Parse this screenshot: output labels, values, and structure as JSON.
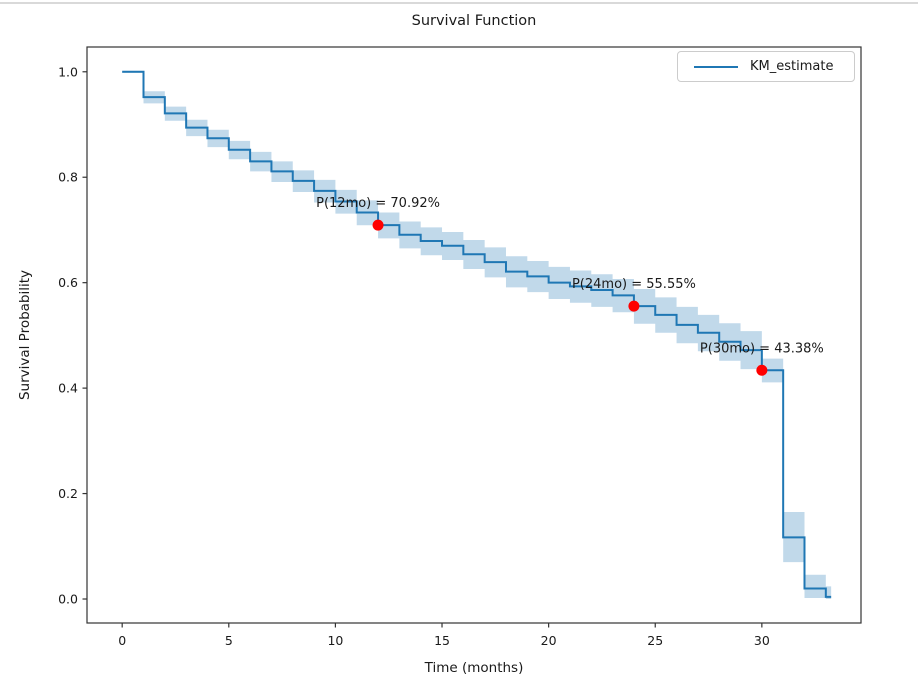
{
  "chart_data": {
    "type": "line",
    "subtype": "kaplan-meier-step-with-ci",
    "title": "Survival Function",
    "xlabel": "Time (months)",
    "ylabel": "Survival Probability",
    "xlim": [
      -1.65,
      34.65
    ],
    "ylim": [
      -0.0455,
      1.047
    ],
    "x_ticks": [
      0,
      5,
      10,
      15,
      20,
      25,
      30
    ],
    "y_ticks": [
      0.0,
      0.2,
      0.4,
      0.6,
      0.8,
      1.0
    ],
    "y_tick_labels": [
      "0.0",
      "0.2",
      "0.4",
      "0.6",
      "0.8",
      "1.0"
    ],
    "grid": false,
    "legend": {
      "label": "KM_estimate",
      "position": "upper right"
    },
    "colors": {
      "line": "#1f77b4",
      "ci_fill": "#1f77b4",
      "ci_opacity": 0.28,
      "marker": "#ff0000",
      "spine": "#333333",
      "text": "#1a1a1a"
    },
    "series": [
      {
        "name": "KM_estimate",
        "step_mode": "post",
        "x_end": 33.25,
        "points_format": [
          "time_months",
          "survival",
          "ci_lower",
          "ci_upper"
        ],
        "points": [
          [
            0,
            1.0,
            0.998,
            1.0
          ],
          [
            1,
            0.952,
            0.94,
            0.963
          ],
          [
            2,
            0.921,
            0.907,
            0.934
          ],
          [
            3,
            0.894,
            0.878,
            0.909
          ],
          [
            4,
            0.874,
            0.857,
            0.89
          ],
          [
            5,
            0.852,
            0.834,
            0.869
          ],
          [
            6,
            0.83,
            0.811,
            0.848
          ],
          [
            7,
            0.811,
            0.791,
            0.83
          ],
          [
            8,
            0.793,
            0.772,
            0.813
          ],
          [
            9,
            0.774,
            0.752,
            0.795
          ],
          [
            10,
            0.754,
            0.731,
            0.776
          ],
          [
            11,
            0.733,
            0.709,
            0.756
          ],
          [
            12,
            0.7092,
            0.684,
            0.733
          ],
          [
            13,
            0.691,
            0.665,
            0.716
          ],
          [
            14,
            0.679,
            0.652,
            0.705
          ],
          [
            15,
            0.67,
            0.643,
            0.696
          ],
          [
            16,
            0.654,
            0.626,
            0.681
          ],
          [
            17,
            0.639,
            0.61,
            0.667
          ],
          [
            18,
            0.621,
            0.591,
            0.65
          ],
          [
            19,
            0.612,
            0.582,
            0.641
          ],
          [
            20,
            0.6,
            0.569,
            0.63
          ],
          [
            21,
            0.593,
            0.562,
            0.623
          ],
          [
            22,
            0.586,
            0.554,
            0.616
          ],
          [
            23,
            0.576,
            0.544,
            0.607
          ],
          [
            24,
            0.5555,
            0.522,
            0.588
          ],
          [
            25,
            0.539,
            0.505,
            0.572
          ],
          [
            26,
            0.52,
            0.485,
            0.554
          ],
          [
            27,
            0.505,
            0.47,
            0.539
          ],
          [
            28,
            0.488,
            0.452,
            0.523
          ],
          [
            29,
            0.472,
            0.436,
            0.508
          ],
          [
            30,
            0.4338,
            0.411,
            0.456
          ],
          [
            31,
            0.117,
            0.07,
            0.165
          ],
          [
            32,
            0.02,
            0.002,
            0.046
          ],
          [
            33,
            0.004,
            0.0,
            0.024
          ]
        ]
      }
    ],
    "annotations": [
      {
        "label": "P(12mo) = 70.92%",
        "x": 12,
        "y": 0.7092
      },
      {
        "label": "P(24mo) = 55.55%",
        "x": 24,
        "y": 0.5555
      },
      {
        "label": "P(30mo) = 43.38%",
        "x": 30,
        "y": 0.4338
      }
    ]
  }
}
